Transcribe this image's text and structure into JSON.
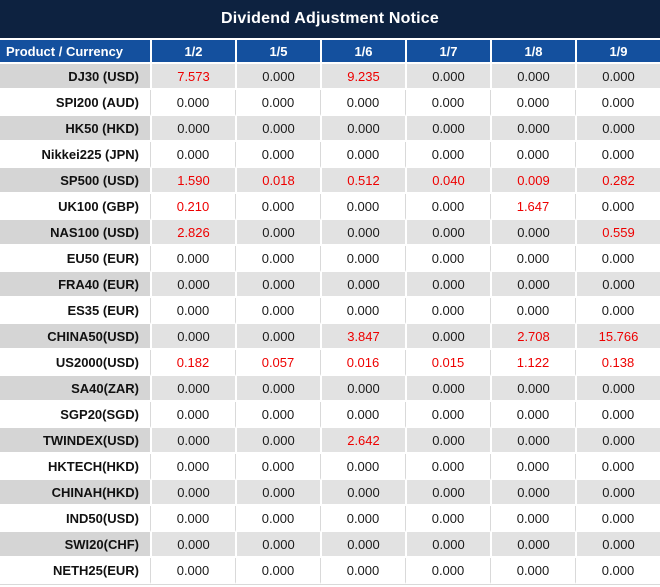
{
  "title": "Dividend Adjustment Notice",
  "colors": {
    "title_bg": "#0D2240",
    "header_bg": "#14509E",
    "stripe_product_bg": "#D5D5D5",
    "stripe_value_bg": "#E2E2E2",
    "negative_value": "#EE0000",
    "value_text": "#1A1A1A"
  },
  "chart_data": {
    "type": "table",
    "title": "Dividend Adjustment Notice",
    "product_header": "Product / Currency",
    "date_headers": [
      "1/2",
      "1/5",
      "1/6",
      "1/7",
      "1/8",
      "1/9"
    ],
    "rows": [
      {
        "product": "DJ30 (USD)",
        "values": [
          "7.573",
          "0.000",
          "9.235",
          "0.000",
          "0.000",
          "0.000"
        ],
        "red": [
          true,
          false,
          true,
          false,
          false,
          false
        ]
      },
      {
        "product": "SPI200 (AUD)",
        "values": [
          "0.000",
          "0.000",
          "0.000",
          "0.000",
          "0.000",
          "0.000"
        ],
        "red": [
          false,
          false,
          false,
          false,
          false,
          false
        ]
      },
      {
        "product": "HK50 (HKD)",
        "values": [
          "0.000",
          "0.000",
          "0.000",
          "0.000",
          "0.000",
          "0.000"
        ],
        "red": [
          false,
          false,
          false,
          false,
          false,
          false
        ]
      },
      {
        "product": "Nikkei225 (JPN)",
        "values": [
          "0.000",
          "0.000",
          "0.000",
          "0.000",
          "0.000",
          "0.000"
        ],
        "red": [
          false,
          false,
          false,
          false,
          false,
          false
        ]
      },
      {
        "product": "SP500 (USD)",
        "values": [
          "1.590",
          "0.018",
          "0.512",
          "0.040",
          "0.009",
          "0.282"
        ],
        "red": [
          true,
          true,
          true,
          true,
          true,
          true
        ]
      },
      {
        "product": "UK100 (GBP)",
        "values": [
          "0.210",
          "0.000",
          "0.000",
          "0.000",
          "1.647",
          "0.000"
        ],
        "red": [
          true,
          false,
          false,
          false,
          true,
          false
        ]
      },
      {
        "product": "NAS100 (USD)",
        "values": [
          "2.826",
          "0.000",
          "0.000",
          "0.000",
          "0.000",
          "0.559"
        ],
        "red": [
          true,
          false,
          false,
          false,
          false,
          true
        ]
      },
      {
        "product": "EU50 (EUR)",
        "values": [
          "0.000",
          "0.000",
          "0.000",
          "0.000",
          "0.000",
          "0.000"
        ],
        "red": [
          false,
          false,
          false,
          false,
          false,
          false
        ]
      },
      {
        "product": "FRA40 (EUR)",
        "values": [
          "0.000",
          "0.000",
          "0.000",
          "0.000",
          "0.000",
          "0.000"
        ],
        "red": [
          false,
          false,
          false,
          false,
          false,
          false
        ]
      },
      {
        "product": "ES35 (EUR)",
        "values": [
          "0.000",
          "0.000",
          "0.000",
          "0.000",
          "0.000",
          "0.000"
        ],
        "red": [
          false,
          false,
          false,
          false,
          false,
          false
        ]
      },
      {
        "product": "CHINA50(USD)",
        "values": [
          "0.000",
          "0.000",
          "3.847",
          "0.000",
          "2.708",
          "15.766"
        ],
        "red": [
          false,
          false,
          true,
          false,
          true,
          true
        ]
      },
      {
        "product": "US2000(USD)",
        "values": [
          "0.182",
          "0.057",
          "0.016",
          "0.015",
          "1.122",
          "0.138"
        ],
        "red": [
          true,
          true,
          true,
          true,
          true,
          true
        ]
      },
      {
        "product": "SA40(ZAR)",
        "values": [
          "0.000",
          "0.000",
          "0.000",
          "0.000",
          "0.000",
          "0.000"
        ],
        "red": [
          false,
          false,
          false,
          false,
          false,
          false
        ]
      },
      {
        "product": "SGP20(SGD)",
        "values": [
          "0.000",
          "0.000",
          "0.000",
          "0.000",
          "0.000",
          "0.000"
        ],
        "red": [
          false,
          false,
          false,
          false,
          false,
          false
        ]
      },
      {
        "product": "TWINDEX(USD)",
        "values": [
          "0.000",
          "0.000",
          "2.642",
          "0.000",
          "0.000",
          "0.000"
        ],
        "red": [
          false,
          false,
          true,
          false,
          false,
          false
        ]
      },
      {
        "product": "HKTECH(HKD)",
        "values": [
          "0.000",
          "0.000",
          "0.000",
          "0.000",
          "0.000",
          "0.000"
        ],
        "red": [
          false,
          false,
          false,
          false,
          false,
          false
        ]
      },
      {
        "product": "CHINAH(HKD)",
        "values": [
          "0.000",
          "0.000",
          "0.000",
          "0.000",
          "0.000",
          "0.000"
        ],
        "red": [
          false,
          false,
          false,
          false,
          false,
          false
        ]
      },
      {
        "product": "IND50(USD)",
        "values": [
          "0.000",
          "0.000",
          "0.000",
          "0.000",
          "0.000",
          "0.000"
        ],
        "red": [
          false,
          false,
          false,
          false,
          false,
          false
        ]
      },
      {
        "product": "SWI20(CHF)",
        "values": [
          "0.000",
          "0.000",
          "0.000",
          "0.000",
          "0.000",
          "0.000"
        ],
        "red": [
          false,
          false,
          false,
          false,
          false,
          false
        ]
      },
      {
        "product": "NETH25(EUR)",
        "values": [
          "0.000",
          "0.000",
          "0.000",
          "0.000",
          "0.000",
          "0.000"
        ],
        "red": [
          false,
          false,
          false,
          false,
          false,
          false
        ]
      }
    ]
  }
}
